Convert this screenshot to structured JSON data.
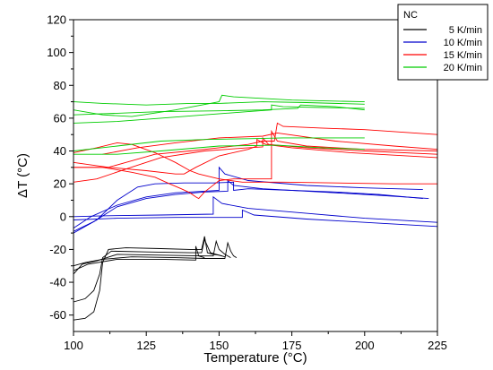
{
  "chart_data": {
    "type": "line",
    "xlabel": "Temperature (°C)",
    "ylabel": "ΔT (°C)",
    "xlim": [
      100,
      225
    ],
    "ylim": [
      -70,
      120
    ],
    "xticks": [
      100,
      125,
      150,
      175,
      200,
      225
    ],
    "yticks": [
      -60,
      -40,
      -20,
      0,
      20,
      40,
      60,
      80,
      100,
      120
    ],
    "grid": false,
    "legend": {
      "title": "NC",
      "placement": "top-right",
      "entries": [
        {
          "label": "5 K/min",
          "color": "#000000"
        },
        {
          "label": "10 K/min",
          "color": "#0000cc"
        },
        {
          "label": "15 K/min",
          "color": "#ff0000"
        },
        {
          "label": "20 K/min",
          "color": "#00cc00"
        }
      ]
    },
    "series": [
      {
        "name": "5 K/min",
        "color": "#000000",
        "curves": [
          [
            [
              100,
              -63
            ],
            [
              104,
              -62
            ],
            [
              107,
              -58
            ],
            [
              109,
              -45
            ],
            [
              110,
              -28
            ],
            [
              112,
              -20
            ],
            [
              118,
              -19
            ],
            [
              130,
              -19.5
            ],
            [
              140,
              -20
            ],
            [
              144,
              -20
            ],
            [
              145,
              -12
            ],
            [
              146,
              -22
            ],
            [
              148,
              -23
            ],
            [
              150,
              -23.5
            ],
            [
              152,
              -24.5
            ]
          ],
          [
            [
              100,
              -52
            ],
            [
              104,
              -50
            ],
            [
              107,
              -45
            ],
            [
              109,
              -35
            ],
            [
              110,
              -25
            ],
            [
              113,
              -21
            ],
            [
              125,
              -21.5
            ],
            [
              140,
              -22
            ],
            [
              144,
              -22
            ],
            [
              145,
              -14
            ],
            [
              147,
              -22
            ],
            [
              149,
              -23
            ],
            [
              151,
              -24
            ]
          ],
          [
            [
              100,
              -35
            ],
            [
              103,
              -29
            ],
            [
              108,
              -27
            ],
            [
              115,
              -23
            ],
            [
              130,
              -23.5
            ],
            [
              145,
              -24
            ],
            [
              148,
              -24
            ],
            [
              149,
              -15
            ],
            [
              150,
              -20
            ],
            [
              152,
              -23
            ],
            [
              154,
              -25
            ]
          ],
          [
            [
              100,
              -30
            ],
            [
              104,
              -28
            ],
            [
              110,
              -26
            ],
            [
              120,
              -24.5
            ],
            [
              135,
              -25
            ],
            [
              145,
              -25.5
            ],
            [
              152,
              -25.5
            ],
            [
              153,
              -16
            ],
            [
              154,
              -21
            ],
            [
              155,
              -24
            ],
            [
              156,
              -25
            ]
          ],
          [
            [
              100,
              -33
            ],
            [
              105,
              -29
            ],
            [
              115,
              -26
            ],
            [
              130,
              -26
            ],
            [
              142,
              -26.5
            ],
            [
              142,
              -18
            ],
            [
              143,
              -24
            ],
            [
              145,
              -25
            ]
          ]
        ]
      },
      {
        "name": "10 K/min",
        "color": "#0000cc",
        "curves": [
          [
            [
              100,
              -7
            ],
            [
              106,
              0
            ],
            [
              115,
              7
            ],
            [
              125,
              12
            ],
            [
              135,
              14.5
            ],
            [
              145,
              15.5
            ],
            [
              150,
              16
            ],
            [
              150,
              30
            ],
            [
              152,
              26
            ],
            [
              160,
              22
            ],
            [
              180,
              19
            ],
            [
              200,
              17.5
            ],
            [
              220,
              16.5
            ]
          ],
          [
            [
              100,
              -9
            ],
            [
              107,
              -3
            ],
            [
              115,
              6
            ],
            [
              125,
              11
            ],
            [
              135,
              13.5
            ],
            [
              145,
              15
            ],
            [
              153,
              15.5
            ],
            [
              153,
              22
            ],
            [
              155,
              19
            ],
            [
              165,
              17
            ],
            [
              185,
              15
            ],
            [
              205,
              13
            ],
            [
              222,
              11
            ]
          ],
          [
            [
              100,
              -10
            ],
            [
              108,
              -2
            ],
            [
              115,
              10
            ],
            [
              122,
              18
            ],
            [
              128,
              20
            ],
            [
              138,
              20.5
            ],
            [
              148,
              20.5
            ],
            [
              155,
              21
            ],
            [
              155,
              16
            ],
            [
              160,
              17
            ],
            [
              175,
              16
            ],
            [
              190,
              15
            ],
            [
              205,
              13.5
            ],
            [
              220,
              11
            ]
          ],
          [
            [
              100,
              0
            ],
            [
              110,
              0.5
            ],
            [
              130,
              1
            ],
            [
              148,
              1.5
            ],
            [
              148,
              12
            ],
            [
              151,
              8
            ],
            [
              160,
              5
            ],
            [
              180,
              2
            ],
            [
              200,
              -1
            ],
            [
              225,
              -3.5
            ]
          ],
          [
            [
              100,
              -2
            ],
            [
              115,
              -1
            ],
            [
              135,
              -0.5
            ],
            [
              158,
              -0.5
            ],
            [
              158,
              4
            ],
            [
              162,
              1
            ],
            [
              180,
              -1.5
            ],
            [
              200,
              -3.5
            ],
            [
              225,
              -6
            ]
          ]
        ]
      },
      {
        "name": "15 K/min",
        "color": "#ff0000",
        "curves": [
          [
            [
              100,
              21
            ],
            [
              108,
              23
            ],
            [
              118,
              29
            ],
            [
              130,
              36
            ],
            [
              145,
              40
            ],
            [
              160,
              42
            ],
            [
              165,
              42.5
            ],
            [
              165,
              48
            ],
            [
              167,
              44
            ],
            [
              180,
              42
            ],
            [
              200,
              40
            ],
            [
              225,
              38
            ]
          ],
          [
            [
              100,
              30
            ],
            [
              110,
              30
            ],
            [
              120,
              27
            ],
            [
              128,
              24
            ],
            [
              133,
              20
            ],
            [
              137,
              17
            ],
            [
              140,
              14.5
            ],
            [
              142,
              12
            ],
            [
              143,
              11
            ],
            [
              145,
              15
            ],
            [
              150,
              22
            ],
            [
              155,
              23
            ],
            [
              165,
              23
            ],
            [
              168,
              23
            ],
            [
              168,
              52
            ],
            [
              170,
              46
            ],
            [
              180,
              43
            ],
            [
              200,
              41
            ],
            [
              225,
              40
            ]
          ],
          [
            [
              100,
              30
            ],
            [
              112,
              30
            ],
            [
              118,
              33
            ],
            [
              128,
              38
            ],
            [
              140,
              40
            ],
            [
              150,
              42
            ],
            [
              160,
              44
            ],
            [
              165,
              46
            ],
            [
              169,
              46
            ],
            [
              170,
              57
            ],
            [
              172,
              55
            ],
            [
              185,
              54
            ],
            [
              200,
              53
            ],
            [
              225,
              50
            ]
          ],
          [
            [
              100,
              39
            ],
            [
              108,
              42
            ],
            [
              115,
              45
            ],
            [
              120,
              44
            ],
            [
              128,
              39
            ],
            [
              135,
              33
            ],
            [
              140,
              28
            ],
            [
              143,
              26
            ],
            [
              150,
              23
            ],
            [
              158,
              21
            ],
            [
              168,
              21
            ],
            [
              172,
              21
            ],
            [
              190,
              20.5
            ],
            [
              210,
              20
            ],
            [
              225,
              20
            ]
          ],
          [
            [
              100,
              33
            ],
            [
              112,
              30
            ],
            [
              125,
              28
            ],
            [
              135,
              26
            ],
            [
              138,
              26
            ],
            [
              142,
              30
            ],
            [
              150,
              37
            ],
            [
              160,
              41
            ],
            [
              163,
              43
            ],
            [
              163,
              47
            ],
            [
              166,
              44
            ],
            [
              175,
              42
            ],
            [
              195,
              39
            ],
            [
              225,
              36
            ]
          ],
          [
            [
              110,
              38
            ],
            [
              122,
              42
            ],
            [
              135,
              45
            ],
            [
              150,
              48
            ],
            [
              165,
              49
            ],
            [
              170,
              51
            ],
            [
              190,
              46
            ],
            [
              210,
              43
            ],
            [
              225,
              41
            ]
          ]
        ]
      },
      {
        "name": "20 K/min",
        "color": "#00cc00",
        "curves": [
          [
            [
              100,
              65
            ],
            [
              110,
              62
            ],
            [
              120,
              61
            ],
            [
              135,
              65
            ],
            [
              150,
              70
            ],
            [
              151,
              74
            ],
            [
              155,
              73
            ],
            [
              175,
              71
            ],
            [
              200,
              70
            ]
          ],
          [
            [
              100,
              70
            ],
            [
              110,
              69
            ],
            [
              125,
              68
            ],
            [
              140,
              69
            ],
            [
              150,
              69
            ],
            [
              165,
              70
            ],
            [
              180,
              69.5
            ],
            [
              200,
              68.5
            ]
          ],
          [
            [
              100,
              57
            ],
            [
              115,
              58
            ],
            [
              130,
              60
            ],
            [
              145,
              62
            ],
            [
              160,
              64
            ],
            [
              168,
              65
            ],
            [
              168,
              68
            ],
            [
              172,
              67
            ],
            [
              185,
              66.5
            ],
            [
              200,
              66
            ]
          ],
          [
            [
              100,
              62
            ],
            [
              115,
              63
            ],
            [
              130,
              64
            ],
            [
              150,
              64.5
            ],
            [
              165,
              65
            ],
            [
              177,
              66
            ],
            [
              178,
              68
            ],
            [
              190,
              67
            ],
            [
              200,
              65
            ]
          ],
          [
            [
              100,
              40
            ],
            [
              115,
              43
            ],
            [
              130,
              46
            ],
            [
              145,
              47
            ],
            [
              160,
              47.5
            ],
            [
              172,
              48
            ],
            [
              185,
              48
            ],
            [
              200,
              48
            ]
          ],
          [
            [
              100,
              38
            ],
            [
              115,
              38
            ],
            [
              130,
              40
            ],
            [
              150,
              43
            ],
            [
              170,
              43.5
            ],
            [
              185,
              42
            ],
            [
              200,
              41
            ]
          ]
        ]
      }
    ]
  }
}
